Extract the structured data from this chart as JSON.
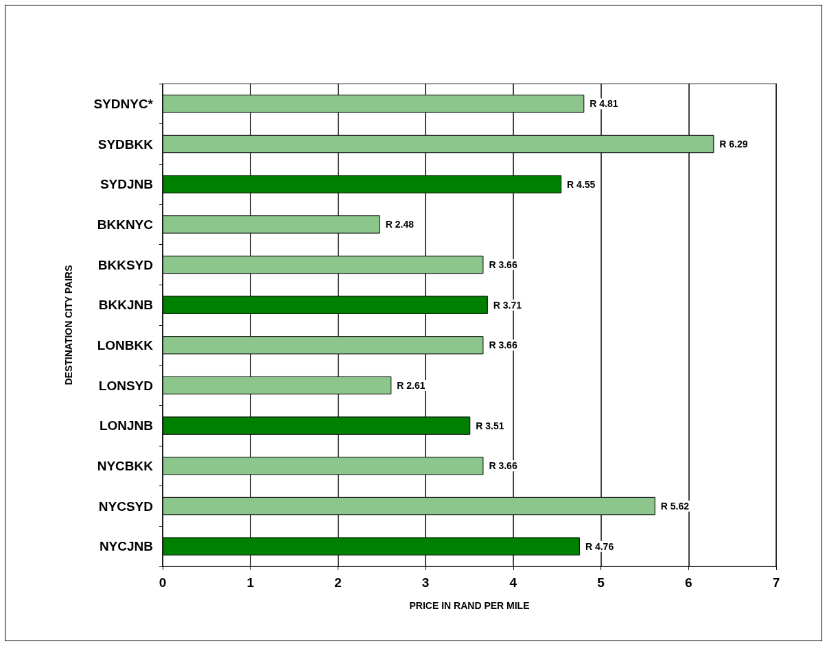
{
  "chart_data": {
    "type": "bar",
    "orientation": "horizontal",
    "xlabel": "PRICE IN RAND PER MILE",
    "ylabel": "DESTINATION CITY PAIRS",
    "categories": [
      "SYDNYC*",
      "SYDBKK",
      "SYDJNB",
      "BKKNYC",
      "BKKSYD",
      "BKKJNB",
      "LONBKK",
      "LONSYD",
      "LONJNB",
      "NYCBKK",
      "NYCSYD",
      "NYCJNB"
    ],
    "values": [
      4.81,
      6.29,
      4.55,
      2.48,
      3.66,
      3.71,
      3.66,
      2.61,
      3.51,
      3.66,
      5.62,
      4.76
    ],
    "value_labels": [
      "R 4.81",
      "R 6.29",
      "R 4.55",
      "R 2.48",
      "R 3.66",
      "R 3.71",
      "R 3.66",
      "R 2.61",
      "R 3.51",
      "R 3.66",
      "R 5.62",
      "R 4.76"
    ],
    "colors": [
      "#8cc68c",
      "#8cc68c",
      "#008000",
      "#8cc68c",
      "#8cc68c",
      "#008000",
      "#8cc68c",
      "#8cc68c",
      "#008000",
      "#8cc68c",
      "#8cc68c",
      "#008000"
    ],
    "xlim": [
      0,
      7
    ],
    "xticks": [
      0,
      1,
      2,
      3,
      4,
      5,
      6,
      7
    ],
    "grid": "x"
  }
}
